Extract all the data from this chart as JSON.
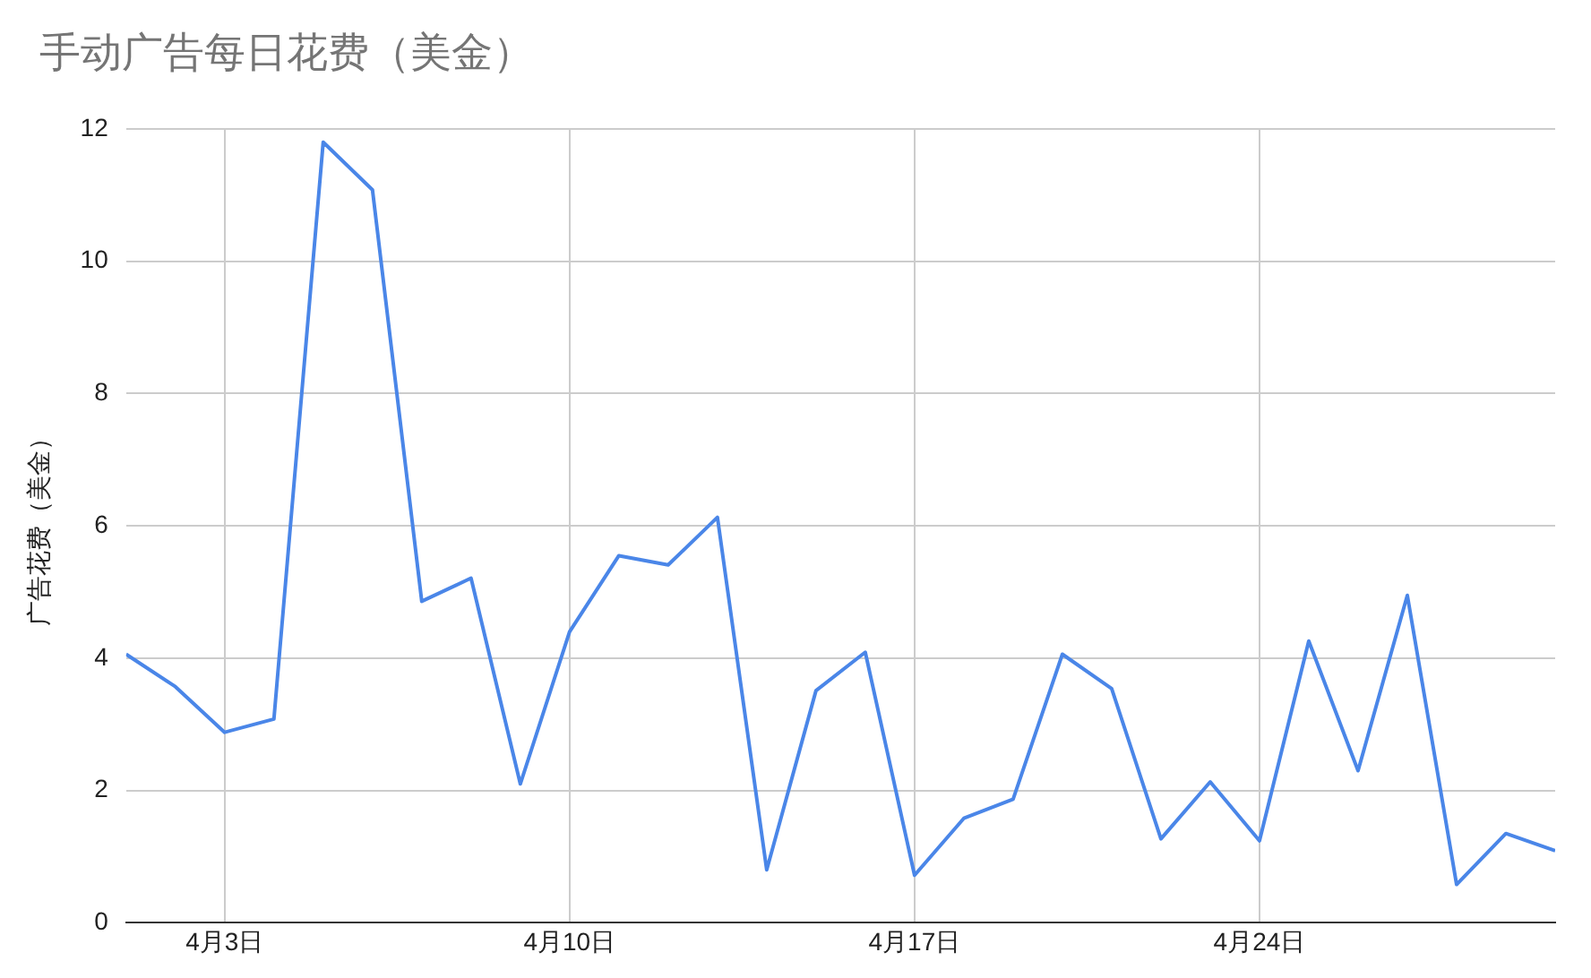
{
  "chart_data": {
    "type": "line",
    "title": "手动广告每日花费（美金）",
    "ylabel": "广告花费（美金）",
    "x": [
      "--04-01",
      "--04-02",
      "--04-03",
      "--04-04",
      "--04-05",
      "--04-06",
      "--04-07",
      "--04-08",
      "--04-09",
      "--04-10",
      "--04-11",
      "--04-12",
      "--04-13",
      "--04-14",
      "--04-15",
      "--04-16",
      "--04-17",
      "--04-18",
      "--04-19",
      "--04-20",
      "--04-21",
      "--04-22",
      "--04-23",
      "--04-24",
      "--04-25",
      "--04-26",
      "--04-27",
      "--04-28",
      "--04-29",
      "--04-30"
    ],
    "series": [
      {
        "color": "#4a86e8",
        "values": [
          4.06,
          3.57,
          2.88,
          3.08,
          11.8,
          11.08,
          4.86,
          5.21,
          2.1,
          4.4,
          5.55,
          5.41,
          6.13,
          0.8,
          3.51,
          4.09,
          0.72,
          1.58,
          1.87,
          4.06,
          3.54,
          1.27,
          2.13,
          1.24,
          4.26,
          2.3,
          4.95,
          0.58,
          1.35,
          1.09
        ]
      }
    ],
    "xlim": [
      "--04-01",
      "--04-30"
    ],
    "xticks": [
      {
        "value": "--04-03",
        "label": "4月3日"
      },
      {
        "value": "--04-10",
        "label": "4月10日"
      },
      {
        "value": "--04-17",
        "label": "4月17日"
      },
      {
        "value": "--04-24",
        "label": "4月24日"
      }
    ],
    "ylim": [
      0,
      12
    ],
    "yticks": [
      0,
      2,
      4,
      6,
      8,
      10,
      12
    ],
    "grid": true,
    "legend": false,
    "marker": "none",
    "line_style": "solid"
  }
}
